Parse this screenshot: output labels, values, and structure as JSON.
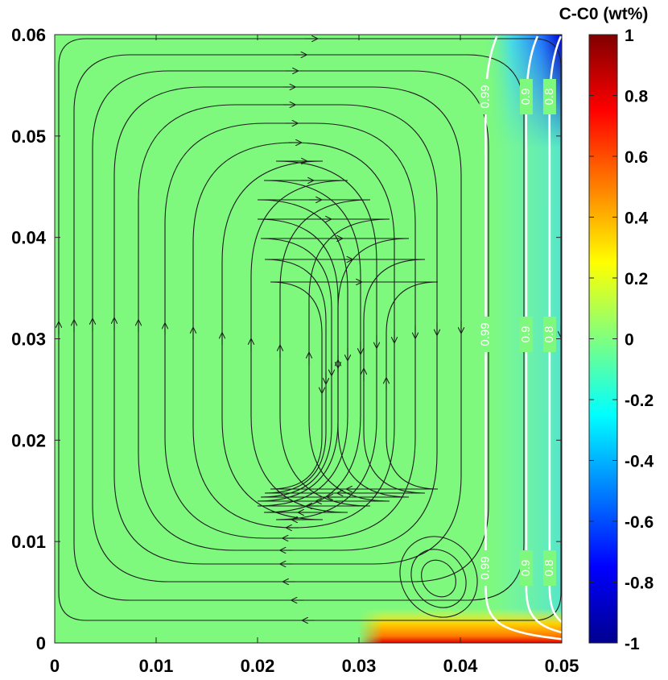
{
  "chart_data": {
    "type": "heatmap",
    "title": "",
    "xlabel": "",
    "ylabel": "",
    "xlim": [
      0,
      0.05
    ],
    "ylim": [
      0,
      0.06
    ],
    "x_ticks": [
      "0",
      "0.01",
      "0.02",
      "0.03",
      "0.04",
      "0.05"
    ],
    "y_ticks": [
      "0",
      "0.01",
      "0.02",
      "0.03",
      "0.04",
      "0.05",
      "0.06"
    ],
    "colorbar": {
      "title": "C-C0 (wt%)",
      "range": [
        -1,
        1
      ],
      "ticks": [
        "1",
        "0.8",
        "0.6",
        "0.4",
        "0.2",
        "0",
        "-0.2",
        "-0.4",
        "-0.6",
        "-0.8",
        "-1"
      ],
      "colormap": "jet"
    },
    "background_value": 0,
    "field_features": [
      {
        "region": "top-right corner",
        "x_range": [
          0.043,
          0.05
        ],
        "y_range": [
          0.057,
          0.06
        ],
        "approx_value": -0.9
      },
      {
        "region": "right wall band",
        "x_range": [
          0.043,
          0.05
        ],
        "y_range": [
          0.002,
          0.057
        ],
        "approx_value": -0.15
      },
      {
        "region": "bottom-right floor",
        "x_range": [
          0.031,
          0.05
        ],
        "y_range": [
          0,
          0.0025
        ],
        "approx_value": 0.6
      }
    ],
    "contours": [
      {
        "label": "0.99",
        "x": 0.0425
      },
      {
        "label": "0.9",
        "x": 0.0465
      },
      {
        "label": "0.8",
        "x": 0.0488
      }
    ],
    "streamlines": "single clockwise recirculation cell with a secondary vortex near (0.038, 0.006)",
    "colors": {
      "field": "#7ef97e",
      "contour": "#ffffff",
      "streamline": "#1c1c1c"
    }
  }
}
